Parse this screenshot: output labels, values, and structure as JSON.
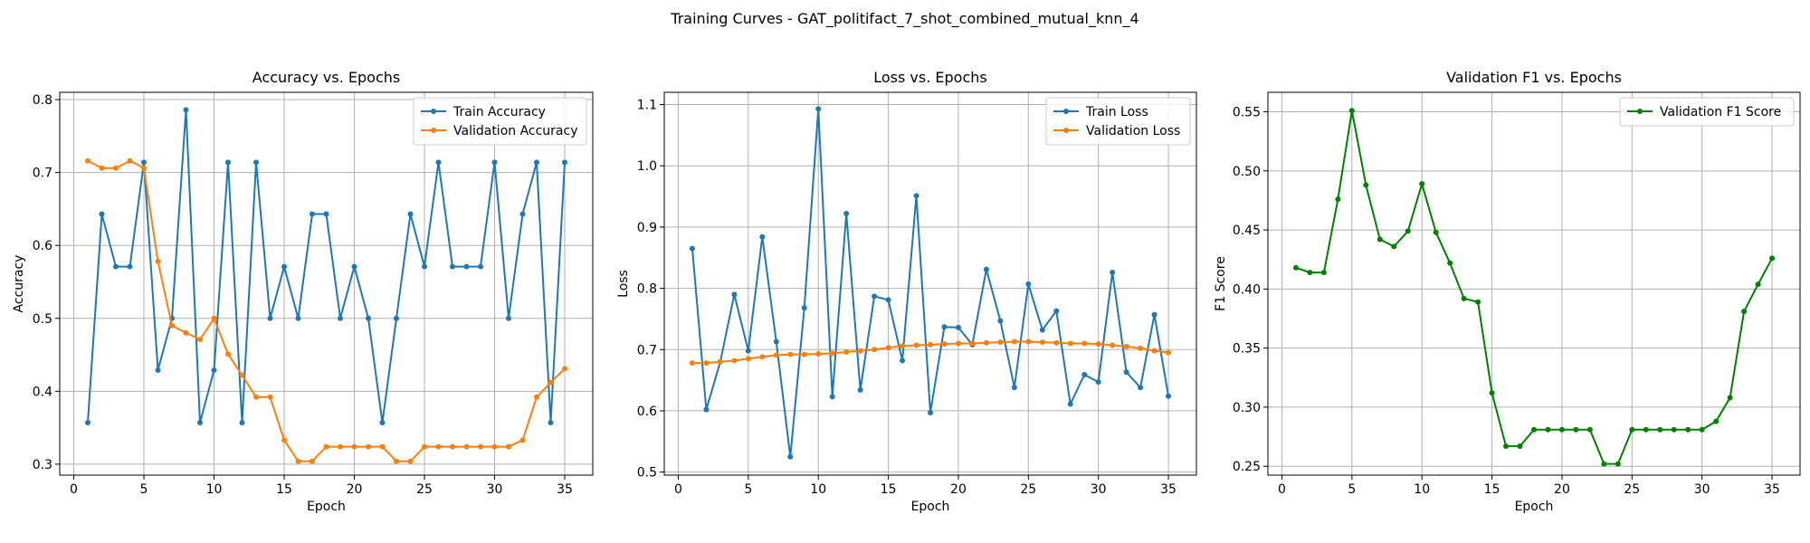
{
  "figure": {
    "suptitle": "Training Curves - GAT_politifact_7_shot_combined_mutual_knn_4"
  },
  "chart_data": [
    {
      "type": "line",
      "title": "Accuracy vs. Epochs",
      "xlabel": "Epoch",
      "ylabel": "Accuracy",
      "xlim": [
        -1,
        37
      ],
      "ylim": [
        0.285,
        0.81
      ],
      "xticks": [
        0,
        5,
        10,
        15,
        20,
        25,
        30,
        35
      ],
      "yticks": [
        0.3,
        0.4,
        0.5,
        0.6,
        0.7,
        0.8
      ],
      "grid": true,
      "legend_position": "top-right",
      "x": [
        1,
        2,
        3,
        4,
        5,
        6,
        7,
        8,
        9,
        10,
        11,
        12,
        13,
        14,
        15,
        16,
        17,
        18,
        19,
        20,
        21,
        22,
        23,
        24,
        25,
        26,
        27,
        28,
        29,
        30,
        31,
        32,
        33,
        34,
        35
      ],
      "series": [
        {
          "name": "Train Accuracy",
          "color": "#1f77b4",
          "values": [
            0.357,
            0.643,
            0.571,
            0.571,
            0.714,
            0.429,
            0.5,
            0.786,
            0.357,
            0.429,
            0.714,
            0.357,
            0.714,
            0.5,
            0.571,
            0.5,
            0.643,
            0.643,
            0.5,
            0.571,
            0.5,
            0.357,
            0.5,
            0.643,
            0.571,
            0.714,
            0.571,
            0.571,
            0.571,
            0.714,
            0.5,
            0.643,
            0.714,
            0.357,
            0.714
          ]
        },
        {
          "name": "Validation Accuracy",
          "color": "#ff7f0e",
          "values": [
            0.716,
            0.706,
            0.706,
            0.716,
            0.706,
            0.578,
            0.49,
            0.48,
            0.471,
            0.5,
            0.451,
            0.422,
            0.392,
            0.392,
            0.333,
            0.304,
            0.304,
            0.324,
            0.324,
            0.324,
            0.324,
            0.324,
            0.304,
            0.304,
            0.324,
            0.324,
            0.324,
            0.324,
            0.324,
            0.324,
            0.324,
            0.333,
            0.392,
            0.412,
            0.431
          ]
        }
      ]
    },
    {
      "type": "line",
      "title": "Loss vs. Epochs",
      "xlabel": "Epoch",
      "ylabel": "Loss",
      "xlim": [
        -1,
        37
      ],
      "ylim": [
        0.495,
        1.12
      ],
      "xticks": [
        0,
        5,
        10,
        15,
        20,
        25,
        30,
        35
      ],
      "yticks": [
        0.5,
        0.6,
        0.7,
        0.8,
        0.9,
        1.0,
        1.1
      ],
      "grid": true,
      "legend_position": "top-right",
      "x": [
        1,
        2,
        3,
        4,
        5,
        6,
        7,
        8,
        9,
        10,
        11,
        12,
        13,
        14,
        15,
        16,
        17,
        18,
        19,
        20,
        21,
        22,
        23,
        24,
        25,
        26,
        27,
        28,
        29,
        30,
        31,
        32,
        33,
        34,
        35
      ],
      "series": [
        {
          "name": "Train Loss",
          "color": "#1f77b4",
          "values": [
            0.865,
            0.602,
            0.68,
            0.79,
            0.698,
            0.884,
            0.713,
            0.525,
            0.768,
            1.093,
            0.623,
            0.922,
            0.634,
            0.787,
            0.781,
            0.682,
            0.951,
            0.597,
            0.737,
            0.736,
            0.708,
            0.831,
            0.747,
            0.638,
            0.807,
            0.732,
            0.763,
            0.611,
            0.659,
            0.647,
            0.826,
            0.663,
            0.638,
            0.757,
            0.624
          ]
        },
        {
          "name": "Validation Loss",
          "color": "#ff7f0e",
          "values": [
            0.678,
            0.678,
            0.68,
            0.682,
            0.685,
            0.688,
            0.691,
            0.692,
            0.692,
            0.693,
            0.694,
            0.696,
            0.698,
            0.7,
            0.703,
            0.706,
            0.707,
            0.708,
            0.709,
            0.71,
            0.71,
            0.711,
            0.712,
            0.713,
            0.713,
            0.712,
            0.711,
            0.71,
            0.71,
            0.709,
            0.707,
            0.705,
            0.702,
            0.698,
            0.695
          ]
        }
      ]
    },
    {
      "type": "line",
      "title": "Validation F1 vs. Epochs",
      "xlabel": "Epoch",
      "ylabel": "F1 Score",
      "xlim": [
        -1,
        37
      ],
      "ylim": [
        0.2425,
        0.5665
      ],
      "xticks": [
        0,
        5,
        10,
        15,
        20,
        25,
        30,
        35
      ],
      "yticks": [
        0.25,
        0.3,
        0.35,
        0.4,
        0.45,
        0.5,
        0.55
      ],
      "grid": true,
      "legend_position": "top-right",
      "x": [
        1,
        2,
        3,
        4,
        5,
        6,
        7,
        8,
        9,
        10,
        11,
        12,
        13,
        14,
        15,
        16,
        17,
        18,
        19,
        20,
        21,
        22,
        23,
        24,
        25,
        26,
        27,
        28,
        29,
        30,
        31,
        32,
        33,
        34,
        35
      ],
      "series": [
        {
          "name": "Validation F1 Score",
          "color": "#008000",
          "values": [
            0.418,
            0.414,
            0.414,
            0.476,
            0.551,
            0.488,
            0.442,
            0.436,
            0.449,
            0.489,
            0.448,
            0.422,
            0.392,
            0.389,
            0.312,
            0.267,
            0.267,
            0.281,
            0.281,
            0.281,
            0.281,
            0.281,
            0.252,
            0.252,
            0.281,
            0.281,
            0.281,
            0.281,
            0.281,
            0.281,
            0.288,
            0.308,
            0.381,
            0.404,
            0.426
          ]
        }
      ]
    }
  ]
}
